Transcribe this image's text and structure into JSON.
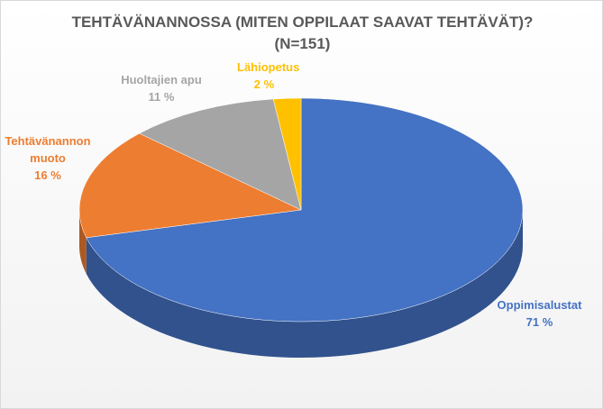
{
  "chart_data": {
    "type": "pie3d",
    "title": "TEHTÄVÄNANNOSSA (MITEN OPPILAAT SAAVAT TEHTÄVÄT)?",
    "subtitle": "(N=151)",
    "categories": [
      "Oppimisalustat",
      "Tehtävänannon muoto",
      "Huoltajien apu",
      "Lähiopetus"
    ],
    "values": [
      71,
      16,
      11,
      2
    ],
    "value_labels": [
      "71 %",
      "16 %",
      "11 %",
      "2 %"
    ],
    "colors": [
      "#4472c4",
      "#ed7d31",
      "#a5a5a5",
      "#ffc000"
    ]
  }
}
